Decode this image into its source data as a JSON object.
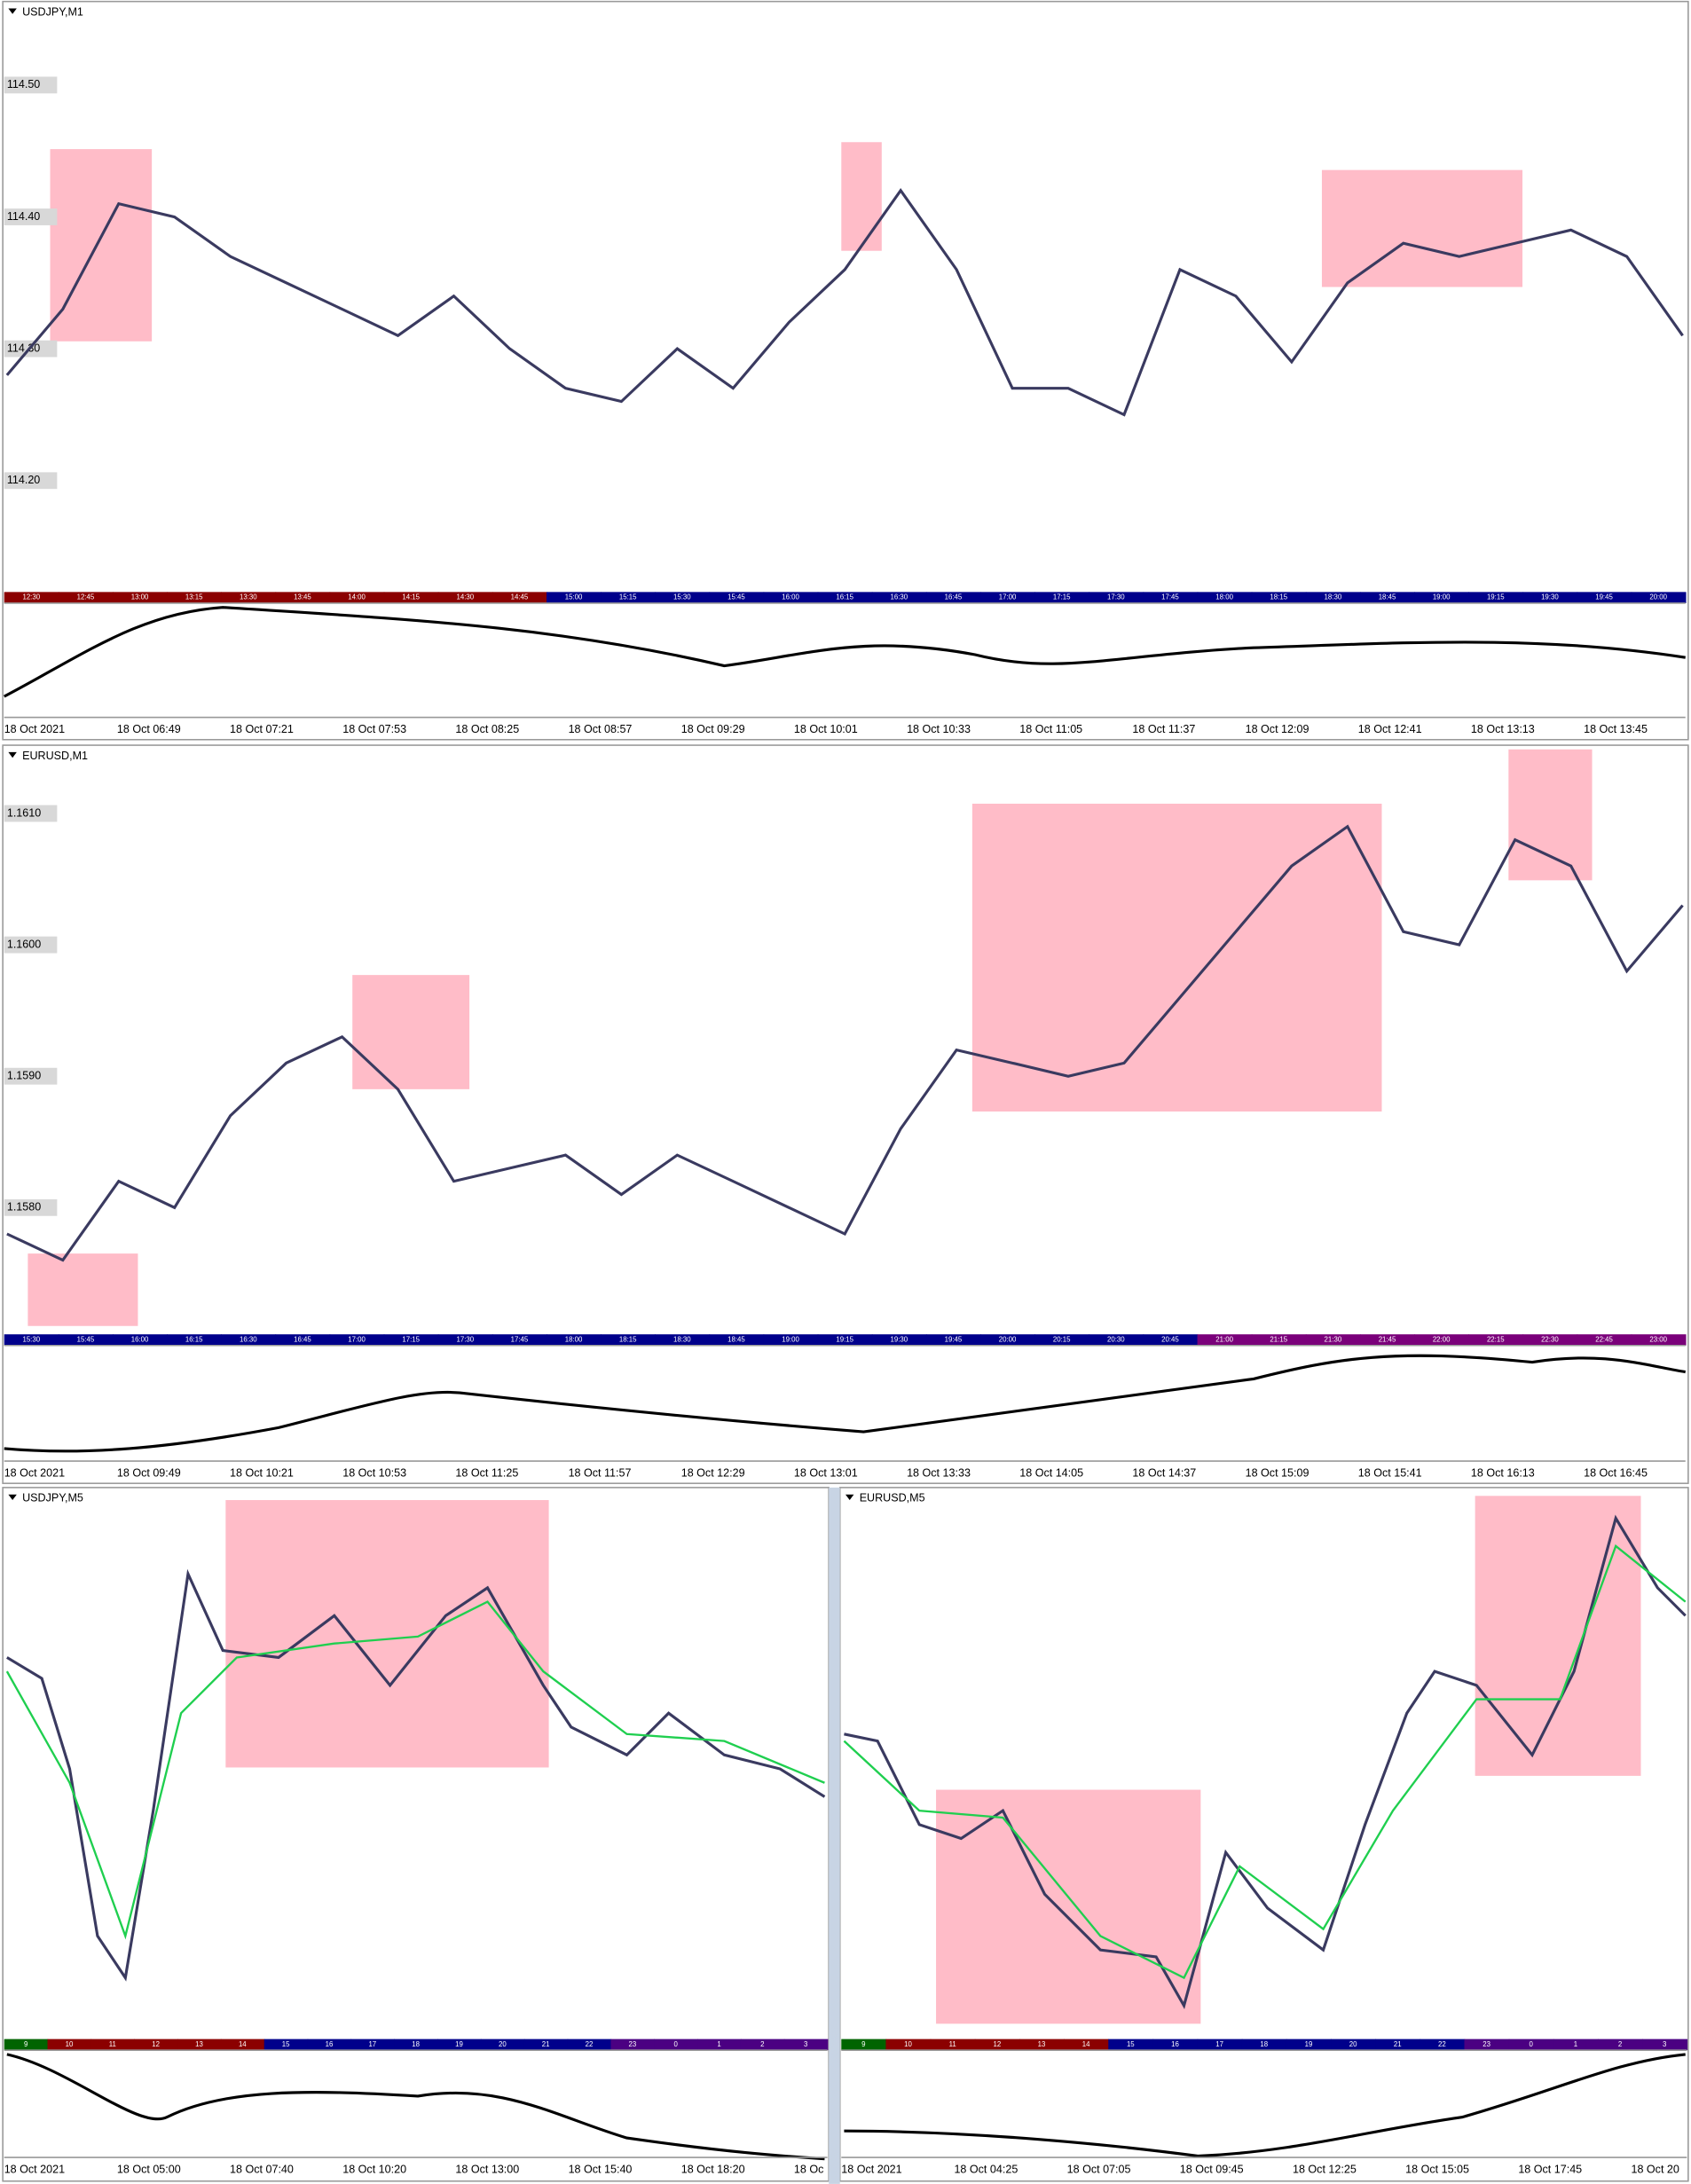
{
  "panels": [
    {
      "title": "USDJPY,M1",
      "price_labels": [
        {
          "value": 114.5,
          "label": "114.50"
        },
        {
          "value": 114.4,
          "label": "114.40"
        },
        {
          "value": 114.3,
          "label": "114.30"
        },
        {
          "value": 114.2,
          "label": "114.20"
        }
      ],
      "closes": [
        114.28,
        114.33,
        114.41,
        114.4,
        114.37,
        114.35,
        114.33,
        114.31,
        114.34,
        114.3,
        114.27,
        114.26,
        114.3,
        114.27,
        114.32,
        114.36,
        114.42,
        114.36,
        114.27,
        114.27,
        114.25,
        114.36,
        114.34,
        114.29,
        114.35,
        114.38,
        114.37,
        114.38,
        114.39,
        114.37,
        114.31
      ],
      "sessions": [
        "12:30",
        "12:45",
        "13:00",
        "13:15",
        "13:30",
        "13:45",
        "14:00",
        "14:15",
        "14:30",
        "14:45",
        "15:00",
        "15:15",
        "15:30",
        "15:45",
        "16:00",
        "16:15",
        "16:30",
        "16:45",
        "17:00",
        "17:15",
        "17:30",
        "17:45",
        "18:00",
        "18:15",
        "18:30",
        "18:45",
        "19:00",
        "19:15",
        "19:30",
        "19:45",
        "20:00"
      ],
      "time_labels": [
        "18 Oct 2021",
        "18 Oct 06:49",
        "18 Oct 07:21",
        "18 Oct 07:53",
        "18 Oct 08:25",
        "18 Oct 08:57",
        "18 Oct 09:29",
        "18 Oct 10:01",
        "18 Oct 10:33",
        "18 Oct 11:05",
        "18 Oct 11:37",
        "18 Oct 12:09",
        "18 Oct 12:41",
        "18 Oct 13:13",
        "18 Oct 13:45"
      ]
    },
    {
      "title": "EURUSD,M1",
      "price_labels": [
        {
          "value": 1.161,
          "label": "1.1610"
        },
        {
          "value": 1.16,
          "label": "1.1600"
        },
        {
          "value": 1.159,
          "label": "1.1590"
        },
        {
          "value": 1.158,
          "label": "1.1580"
        }
      ],
      "closes": [
        1.1578,
        1.1576,
        1.1582,
        1.158,
        1.1587,
        1.1591,
        1.1593,
        1.1589,
        1.1582,
        1.1583,
        1.1584,
        1.1581,
        1.1584,
        1.1582,
        1.158,
        1.1578,
        1.1586,
        1.1592,
        1.1591,
        1.159,
        1.1591,
        1.1596,
        1.1601,
        1.1606,
        1.1609,
        1.1601,
        1.16,
        1.1608,
        1.1606,
        1.1598,
        1.1603
      ],
      "sessions": [
        "15:30",
        "15:45",
        "16:00",
        "16:15",
        "16:30",
        "16:45",
        "17:00",
        "17:15",
        "17:30",
        "17:45",
        "18:00",
        "18:15",
        "18:30",
        "18:45",
        "19:00",
        "19:15",
        "19:30",
        "19:45",
        "20:00",
        "20:15",
        "20:30",
        "20:45",
        "21:00",
        "21:15",
        "21:30",
        "21:45",
        "22:00",
        "22:15",
        "22:30",
        "22:45",
        "23:00"
      ],
      "time_labels": [
        "18 Oct 2021",
        "18 Oct 09:49",
        "18 Oct 10:21",
        "18 Oct 10:53",
        "18 Oct 11:25",
        "18 Oct 11:57",
        "18 Oct 12:29",
        "18 Oct 13:01",
        "18 Oct 13:33",
        "18 Oct 14:05",
        "18 Oct 14:37",
        "18 Oct 15:09",
        "18 Oct 15:41",
        "18 Oct 16:13",
        "18 Oct 16:45"
      ]
    },
    {
      "title": "USDJPY,M5",
      "sessions": [
        "9",
        "10",
        "11",
        "12",
        "13",
        "14",
        "15",
        "16",
        "17",
        "18",
        "19",
        "20",
        "21",
        "22",
        "23",
        "0",
        "1",
        "2",
        "3"
      ],
      "time_labels": [
        "18 Oct 2021",
        "18 Oct 05:00",
        "18 Oct 07:40",
        "18 Oct 10:20",
        "18 Oct 13:00",
        "18 Oct 15:40",
        "18 Oct 18:20",
        "18 Oc"
      ]
    },
    {
      "title": "EURUSD,M5",
      "sessions": [
        "9",
        "10",
        "11",
        "12",
        "13",
        "14",
        "15",
        "16",
        "17",
        "18",
        "19",
        "20",
        "21",
        "22",
        "23",
        "0",
        "1",
        "2",
        "3"
      ],
      "time_labels": [
        "18 Oct 2021",
        "18 Oct 04:25",
        "18 Oct 07:05",
        "18 Oct 09:45",
        "18 Oct 12:25",
        "18 Oct 15:05",
        "18 Oct 17:45",
        "18 Oct 20"
      ]
    }
  ]
}
